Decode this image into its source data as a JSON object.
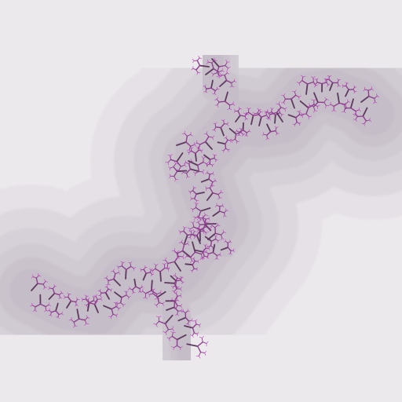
{
  "image": {
    "subject": "julia-set-fractal",
    "palette": {
      "background": "#ece9ed",
      "bands": [
        "#e5e1e6",
        "#ddd8de",
        "#d6d1d8",
        "#d0cad2",
        "#cac3cc",
        "#c5bec8"
      ],
      "filament": "#8e3a8e",
      "filament_highlight": "#c23ac2",
      "filament_dark": "#5e3a5e"
    }
  }
}
